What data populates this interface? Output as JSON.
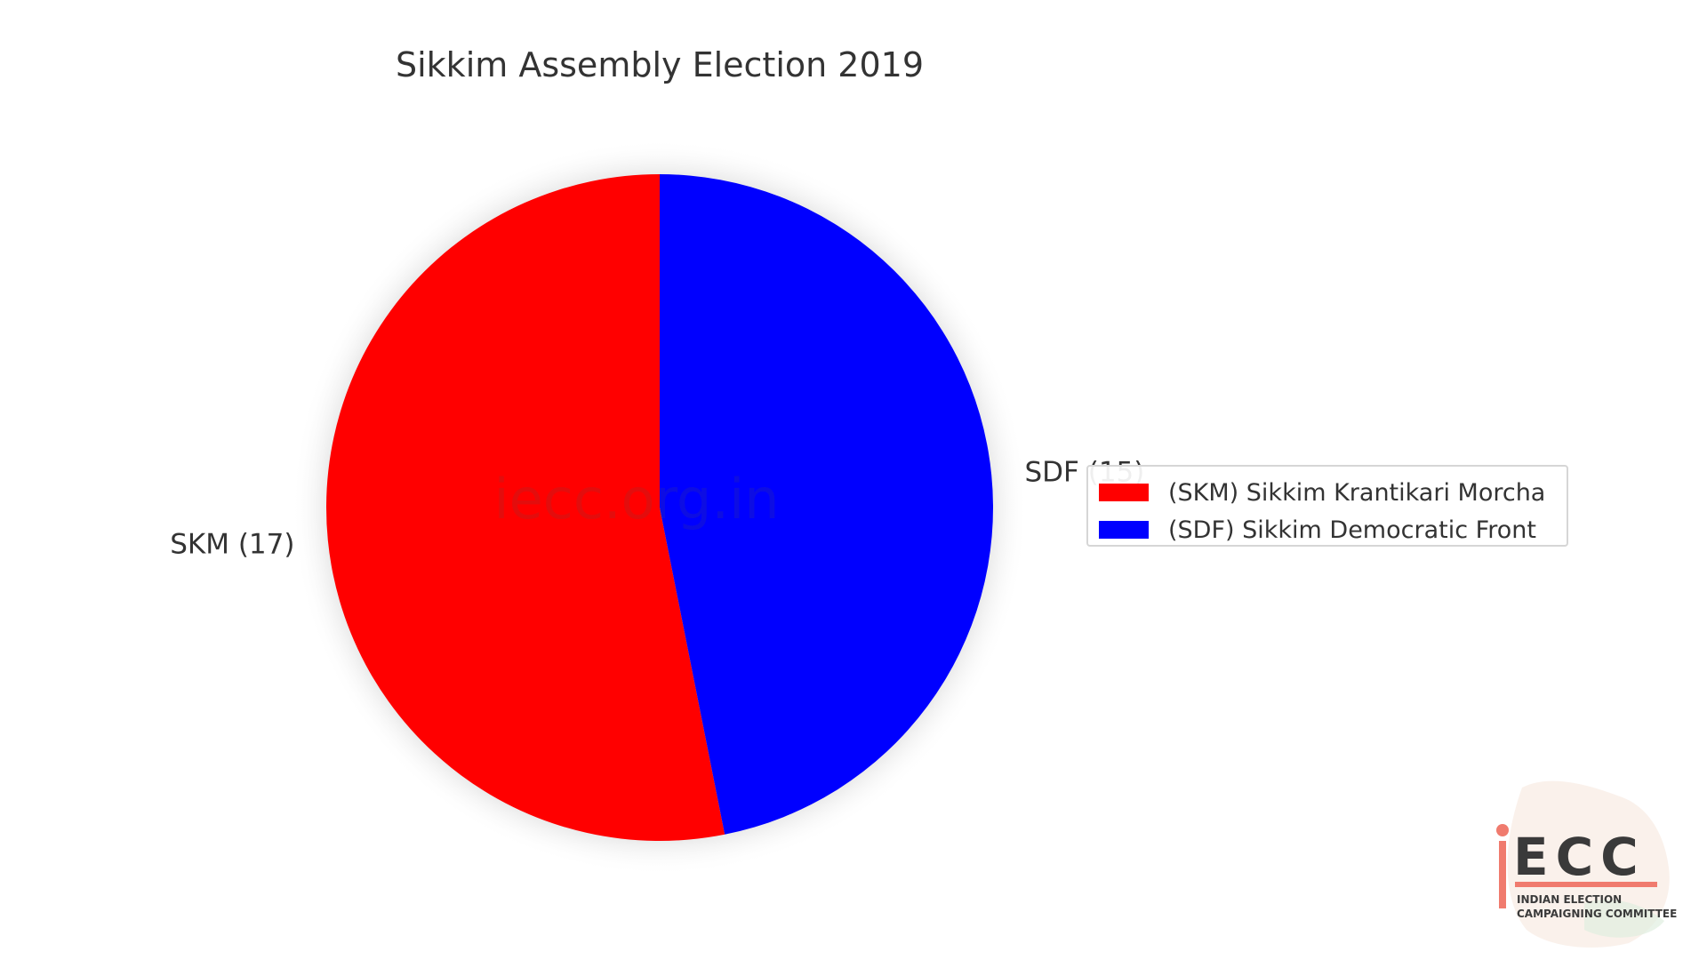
{
  "chart_data": {
    "type": "pie",
    "title": "Sikkim Assembly Election 2019",
    "slices": [
      {
        "label": "SKM (17)",
        "legend": "(SKM) Sikkim Krantikari Morcha",
        "value": 17,
        "color": "#ff0000"
      },
      {
        "label": "SDF (15)",
        "legend": "(SDF) Sikkim Democratic Front",
        "value": 15,
        "color": "#0000ff"
      }
    ],
    "start_angle_deg": 90,
    "direction": "counterclockwise",
    "legend_placement": "center-right",
    "watermark": "iecc.org.in"
  },
  "logo": {
    "word": "iECC",
    "line1": "INDIAN ELECTION",
    "line2": "CAMPAIGNING COMMITTEE",
    "accent_color": "#f07b6e"
  }
}
